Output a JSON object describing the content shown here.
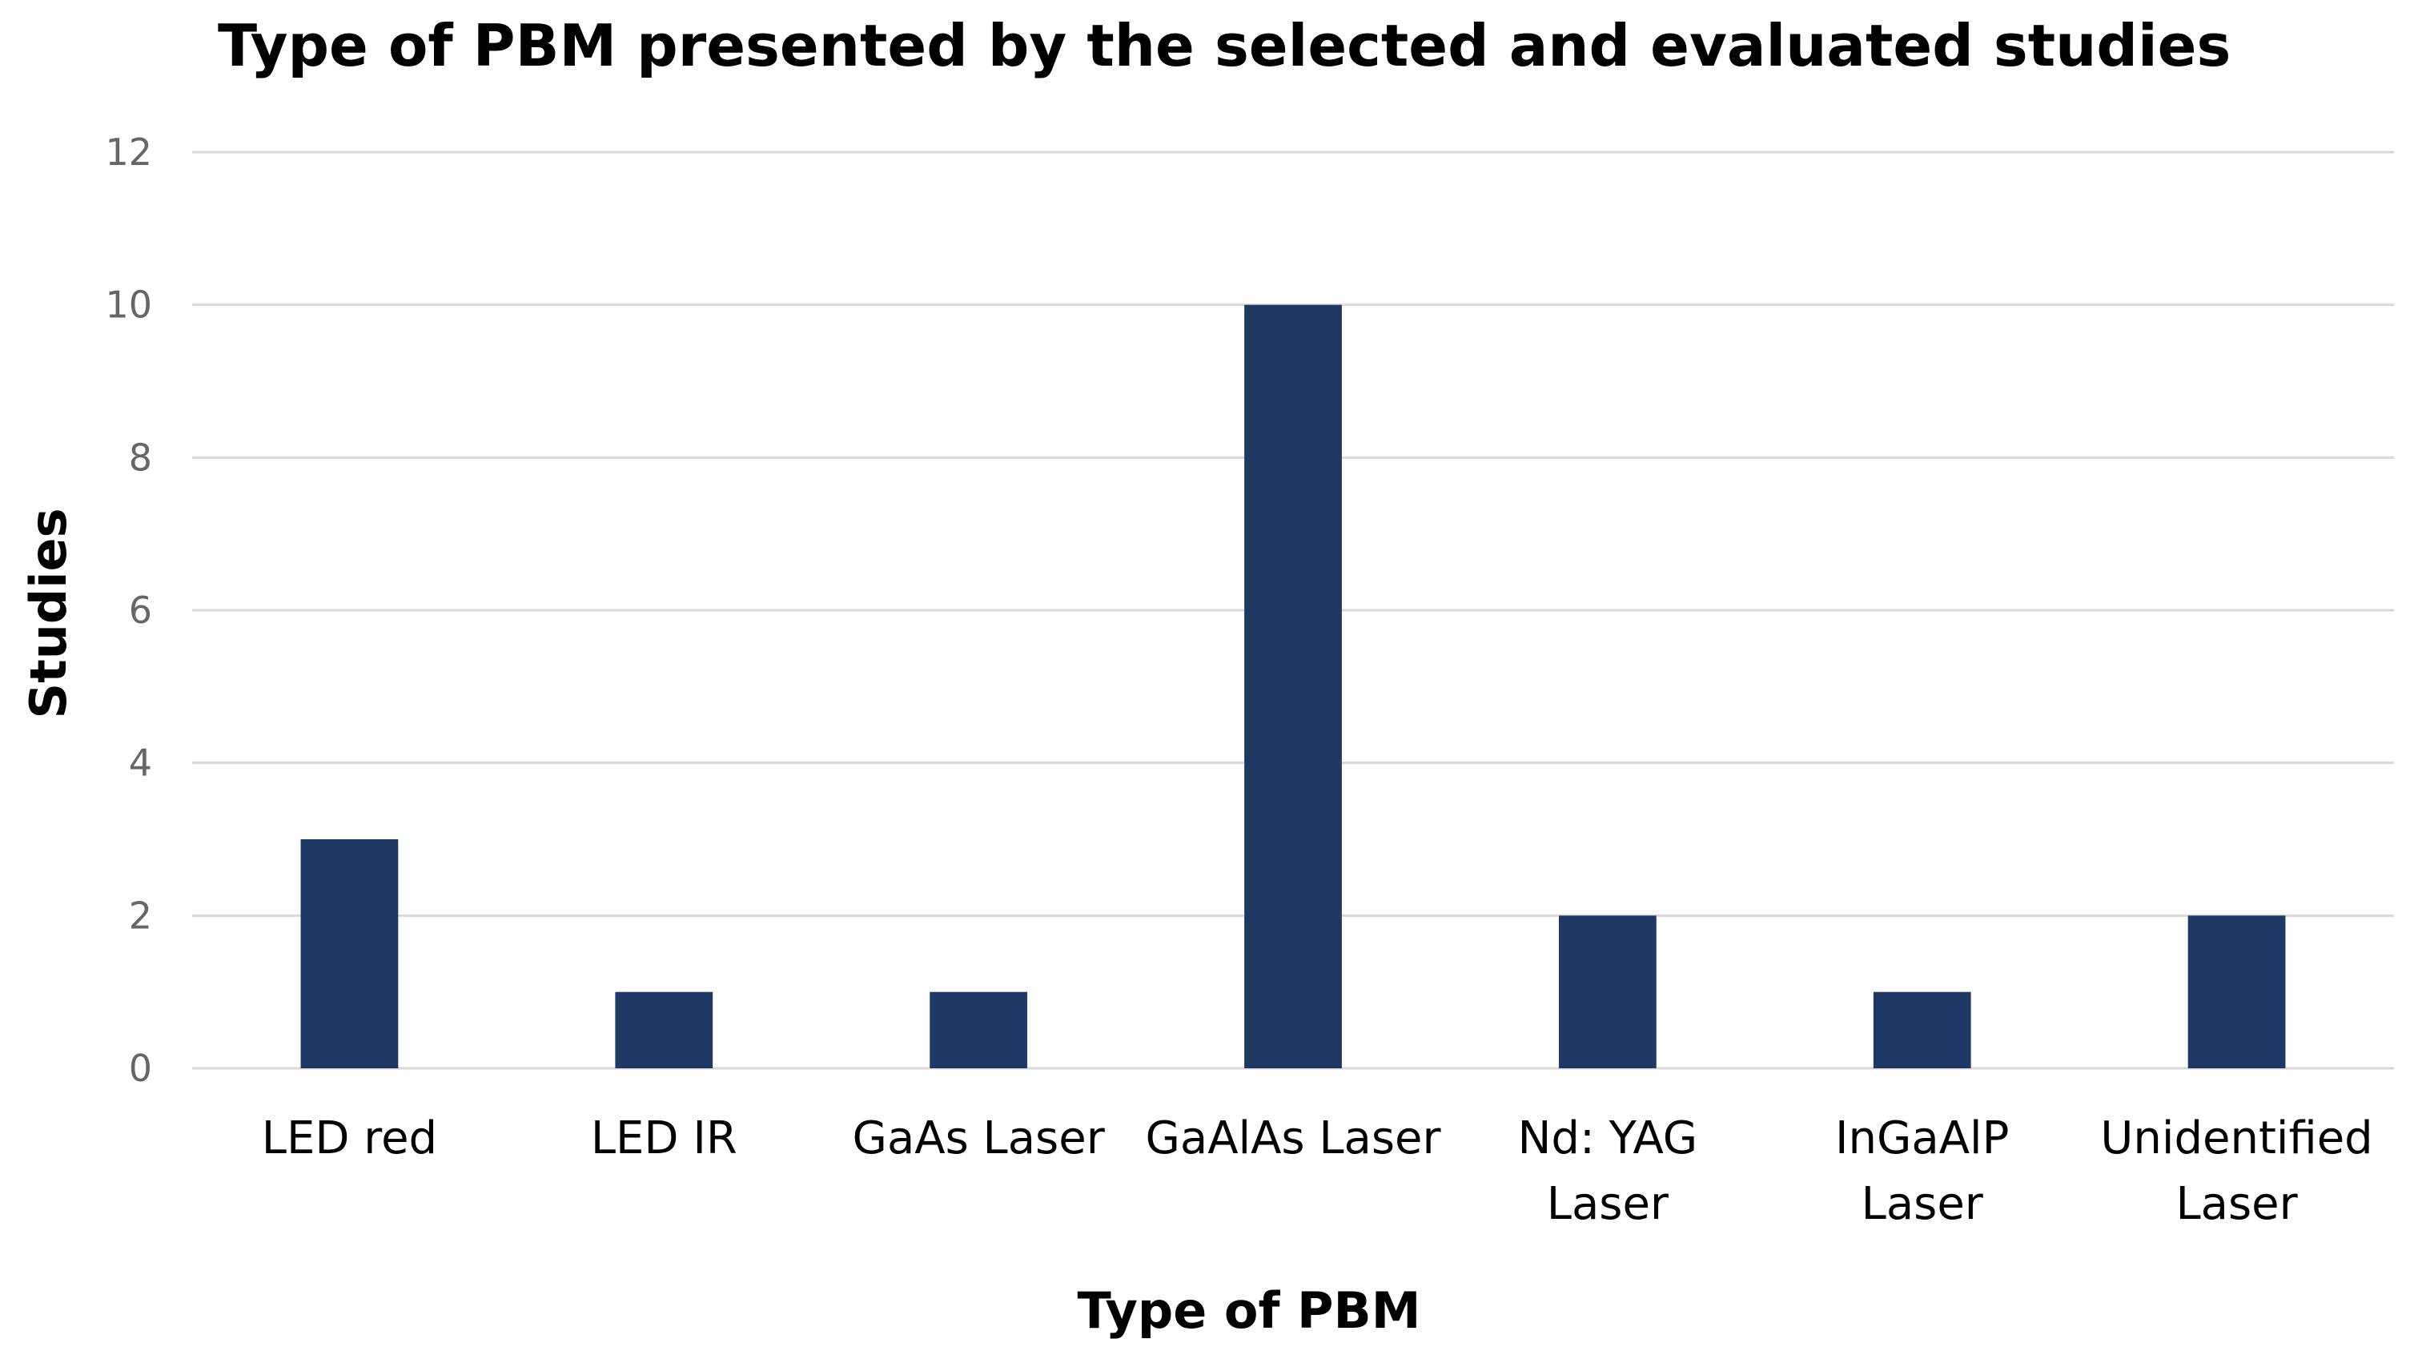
{
  "chart_data": {
    "type": "bar",
    "title": "Type of PBM presented by the selected and evaluated studies",
    "xlabel": "Type of PBM",
    "ylabel": "Studies",
    "categories": [
      "LED red",
      "LED IR",
      "GaAs Laser",
      "GaAlAs Laser",
      "Nd: YAG Laser",
      "InGaAlP Laser",
      "Unidentified Laser"
    ],
    "category_lines": [
      [
        "LED red"
      ],
      [
        "LED IR"
      ],
      [
        "GaAs Laser"
      ],
      [
        "GaAlAs Laser"
      ],
      [
        "Nd: YAG",
        "Laser"
      ],
      [
        "InGaAlP",
        "Laser"
      ],
      [
        "Unidentified",
        "Laser"
      ]
    ],
    "values": [
      3,
      1,
      1,
      10,
      2,
      1,
      2
    ],
    "ylim": [
      0,
      12
    ],
    "yticks": [
      0,
      2,
      4,
      6,
      8,
      10,
      12
    ],
    "grid": true,
    "legend": "none",
    "bar_color": "#1f3864"
  }
}
